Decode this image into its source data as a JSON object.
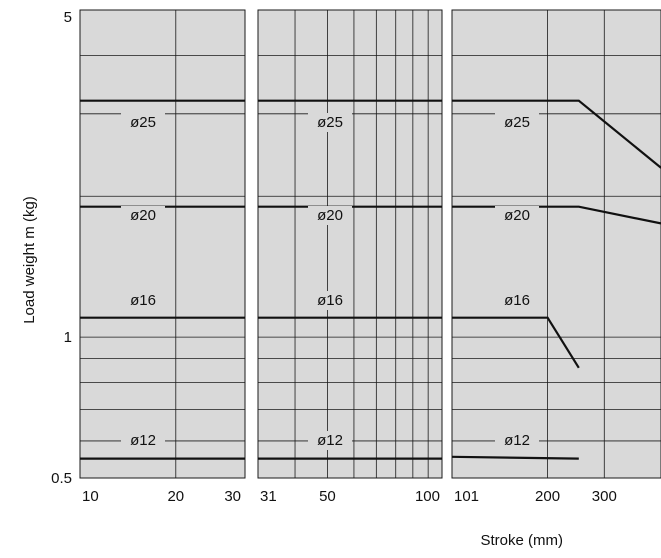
{
  "chart_data": {
    "type": "line",
    "xlabel": "Stroke (mm)",
    "ylabel": "Load weight m (kg)",
    "y_scale": "log",
    "ylim": [
      0.5,
      5
    ],
    "y_ticks": [
      "5",
      "1",
      "0.5"
    ],
    "grid": true,
    "panels": [
      {
        "x_scale": "log",
        "xlim": [
          10,
          33
        ],
        "x_ticks": [
          "10",
          "20",
          "30"
        ],
        "series": [
          {
            "name": "ø25",
            "points": [
              [
                10,
                3.2
              ],
              [
                33,
                3.2
              ]
            ]
          },
          {
            "name": "ø20",
            "points": [
              [
                10,
                1.9
              ],
              [
                33,
                1.9
              ]
            ]
          },
          {
            "name": "ø16",
            "points": [
              [
                10,
                1.1
              ],
              [
                33,
                1.1
              ]
            ]
          },
          {
            "name": "ø12",
            "points": [
              [
                10,
                0.55
              ],
              [
                33,
                0.55
              ]
            ]
          }
        ]
      },
      {
        "x_scale": "log",
        "xlim": [
          31,
          110
        ],
        "x_ticks": [
          "31",
          "50",
          "100"
        ],
        "series": [
          {
            "name": "ø25",
            "points": [
              [
                31,
                3.2
              ],
              [
                110,
                3.2
              ]
            ]
          },
          {
            "name": "ø20",
            "points": [
              [
                31,
                1.9
              ],
              [
                110,
                1.9
              ]
            ]
          },
          {
            "name": "ø16",
            "points": [
              [
                31,
                1.1
              ],
              [
                110,
                1.1
              ]
            ]
          },
          {
            "name": "ø12",
            "points": [
              [
                31,
                0.55
              ],
              [
                110,
                0.55
              ]
            ]
          }
        ]
      },
      {
        "x_scale": "log",
        "xlim": [
          101,
          450
        ],
        "x_ticks": [
          "101",
          "200",
          "300"
        ],
        "series": [
          {
            "name": "ø25",
            "points": [
              [
                101,
                3.2
              ],
              [
                250,
                3.2
              ],
              [
                450,
                2.3
              ]
            ]
          },
          {
            "name": "ø20",
            "points": [
              [
                101,
                1.9
              ],
              [
                250,
                1.9
              ],
              [
                450,
                1.75
              ]
            ]
          },
          {
            "name": "ø16",
            "points": [
              [
                101,
                1.1
              ],
              [
                200,
                1.1
              ],
              [
                250,
                0.86
              ]
            ]
          },
          {
            "name": "ø12",
            "points": [
              [
                101,
                0.555
              ],
              [
                250,
                0.55
              ]
            ]
          }
        ]
      }
    ]
  }
}
